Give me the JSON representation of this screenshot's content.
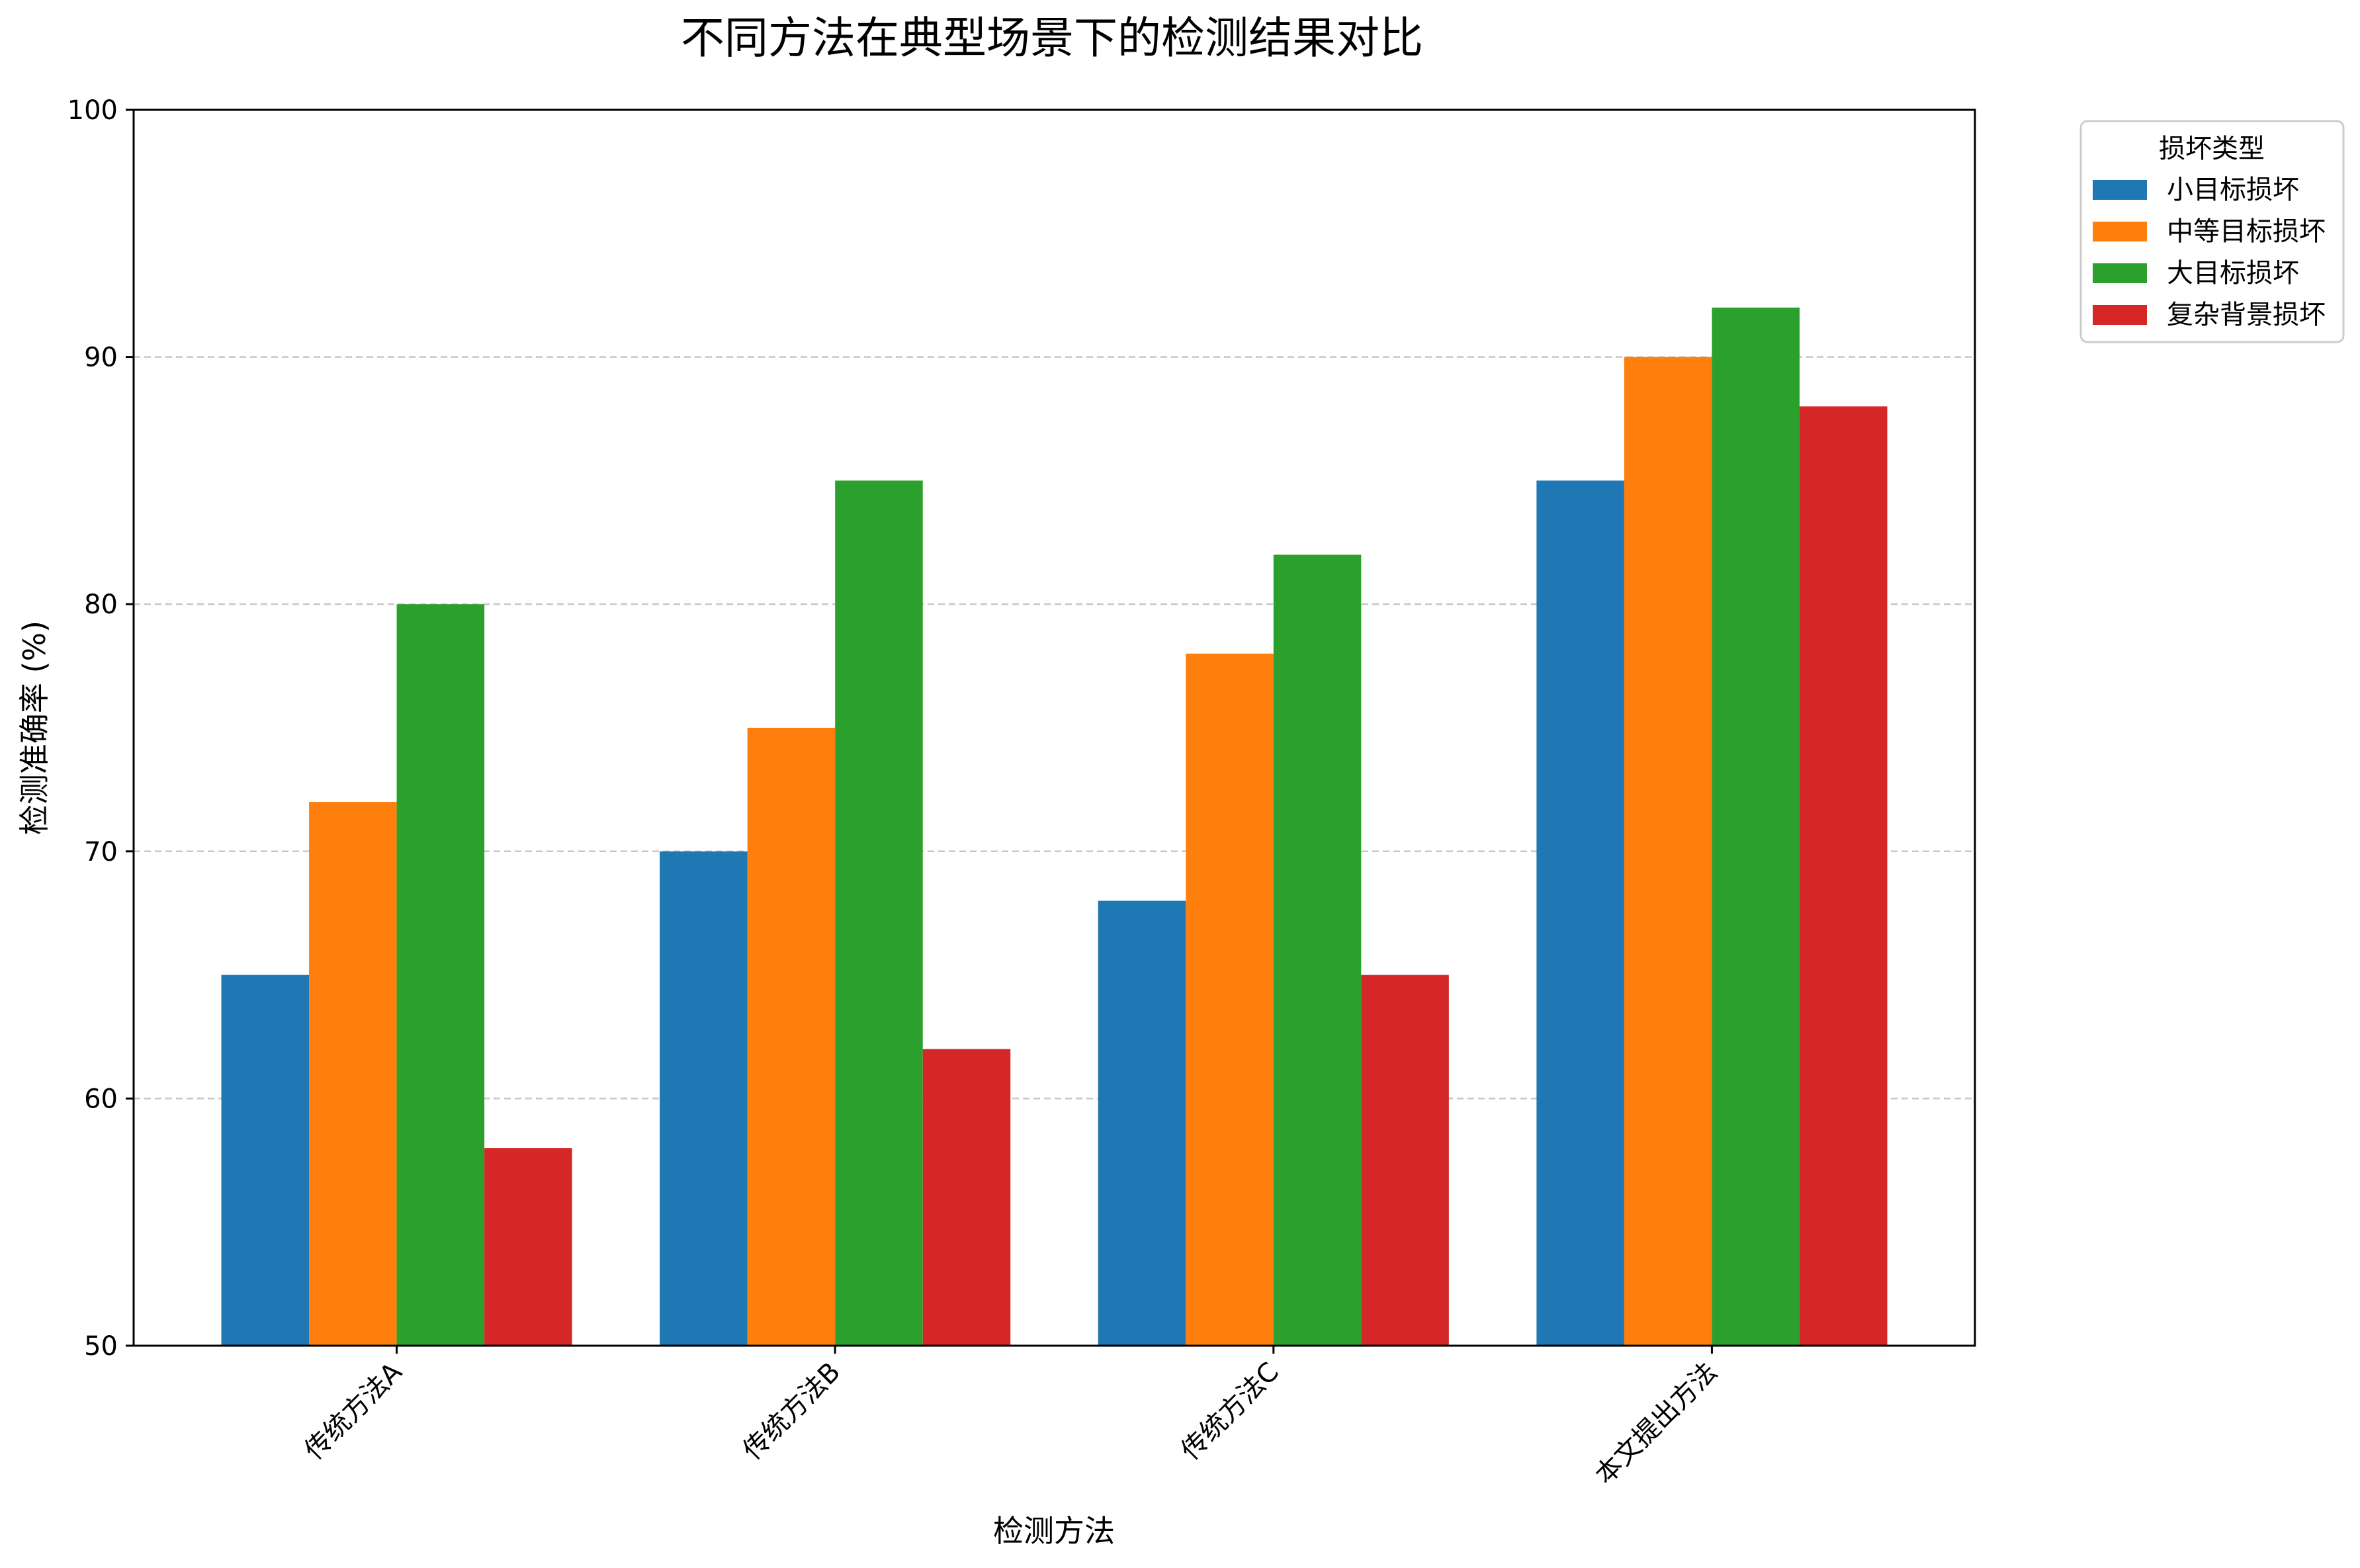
{
  "chart_data": {
    "type": "bar",
    "title": "不同方法在典型场景下的检测结果对比",
    "xlabel": "检测方法",
    "ylabel": "检测准确率 (%)",
    "categories": [
      "传统方法A",
      "传统方法B",
      "传统方法C",
      "本文提出方法"
    ],
    "ylim": [
      50,
      100
    ],
    "yticks": [
      50,
      60,
      70,
      80,
      90,
      100
    ],
    "grid": "y-dashed",
    "legend": {
      "title": "损坏类型",
      "placement": "outside-top-right"
    },
    "series": [
      {
        "name": "小目标损坏",
        "color": "#1f77b4",
        "values": [
          65,
          70,
          68,
          85
        ]
      },
      {
        "name": "中等目标损坏",
        "color": "#ff7f0e",
        "values": [
          72,
          75,
          78,
          90
        ]
      },
      {
        "name": "大目标损坏",
        "color": "#2ca02c",
        "values": [
          80,
          85,
          82,
          92
        ]
      },
      {
        "name": "复杂背景损坏",
        "color": "#d62728",
        "values": [
          58,
          62,
          65,
          88
        ]
      }
    ]
  }
}
